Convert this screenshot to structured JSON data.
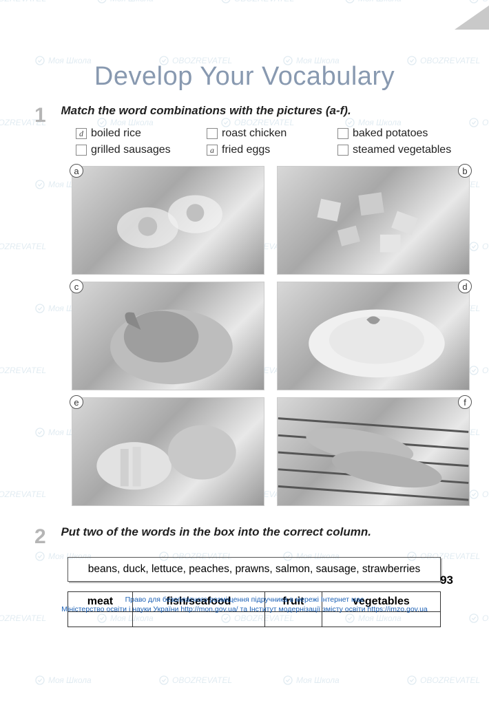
{
  "watermark": {
    "text1": "Моя Школа",
    "text2": "OBOZREVATEL",
    "color": "#3a7ca8"
  },
  "title": "Develop Your Vocabulary",
  "exercise1": {
    "number": "1",
    "instruction": "Match the word combinations with the pictures (a-f).",
    "options": [
      {
        "answer": "d",
        "label": "boiled rice"
      },
      {
        "answer": "",
        "label": "roast chicken"
      },
      {
        "answer": "",
        "label": "baked potatoes"
      },
      {
        "answer": "",
        "label": "grilled sausages"
      },
      {
        "answer": "a",
        "label": "fried eggs"
      },
      {
        "answer": "",
        "label": "steamed vegetables"
      }
    ],
    "pictures": [
      {
        "letter": "a",
        "pos": "tl"
      },
      {
        "letter": "b",
        "pos": "tr"
      },
      {
        "letter": "c",
        "pos": "tl"
      },
      {
        "letter": "d",
        "pos": "tr"
      },
      {
        "letter": "e",
        "pos": "tl"
      },
      {
        "letter": "f",
        "pos": "tr"
      }
    ]
  },
  "exercise2": {
    "number": "2",
    "instruction": "Put two of the words in the box into the correct column.",
    "wordbox": "beans, duck, lettuce, peaches, prawns, salmon, sausage, strawberries",
    "columns": [
      "meat",
      "fish/seafood",
      "fruit",
      "vegetables"
    ]
  },
  "pageNumber": "93",
  "footer": {
    "line1": "Право для безоплатного розміщення підручника в мережі Інтернет має",
    "line2": "Міністерство освіти і науки України http://mon.gov.ua/ та Інститут модернізації змісту освіти https://imzo.gov.ua"
  }
}
